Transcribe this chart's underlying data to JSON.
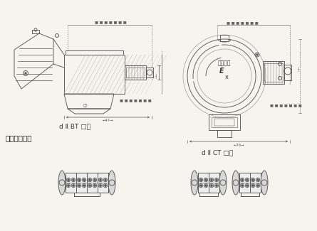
{
  "bg_color": "#f5f4ee",
  "lc": "#888888",
  "dc": "#555555",
  "label1": "d Ⅱ BT □级",
  "label2": "d Ⅱ CT □级",
  "section_label": "安装端子形式",
  "text_ex1": "通络自控",
  "text_ex2": "E",
  "text_ex3": "x",
  "lw": 0.65,
  "label_fs": 6.5,
  "section_fs": 7.5,
  "small_fs": 3.8,
  "inner_fs": 5.5
}
